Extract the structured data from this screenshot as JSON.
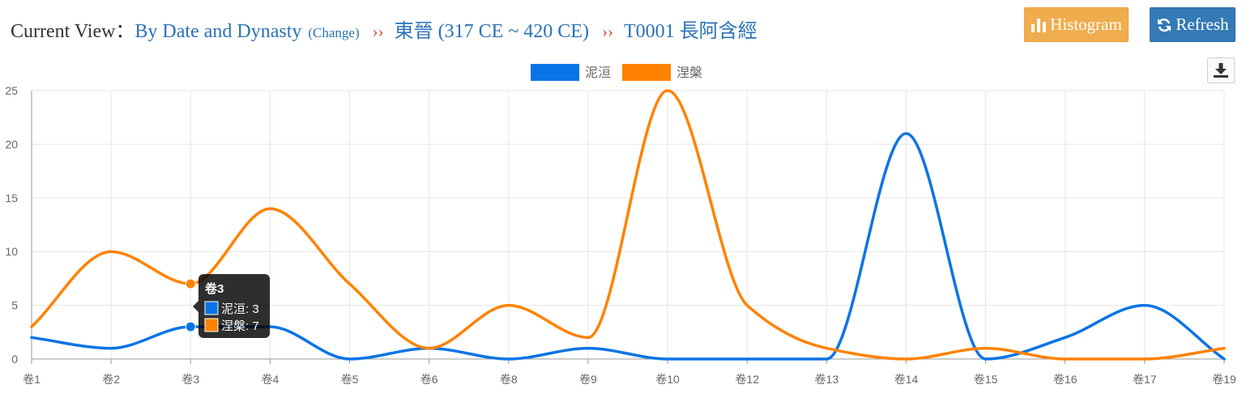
{
  "header": {
    "label": "Current View：",
    "view_mode": "By Date and Dynasty",
    "change_label": "(Change)",
    "separator": "››",
    "dynasty": "東晉 (317 CE ~ 420 CE)",
    "text": "T0001 長阿含經"
  },
  "buttons": {
    "histogram": "Histogram",
    "refresh": "Refresh"
  },
  "colors": {
    "series1": "#0a74e6",
    "series2": "#ff8200",
    "histogram_button": "#f0ad4e",
    "refresh_button": "#337ab7",
    "link": "#2a72b8",
    "separator": "#e04a3a"
  },
  "tooltip": {
    "title": "卷3",
    "lines": [
      "泥洹: 3",
      "涅槃: 7"
    ]
  },
  "chart_data": {
    "type": "line",
    "categories": [
      "卷1",
      "卷2",
      "卷3",
      "卷4",
      "卷5",
      "卷6",
      "卷8",
      "卷9",
      "卷10",
      "卷12",
      "卷13",
      "卷14",
      "卷15",
      "卷16",
      "卷17",
      "卷19"
    ],
    "series": [
      {
        "name": "泥洹",
        "values": [
          2,
          1,
          3,
          3,
          0,
          1,
          0,
          1,
          0,
          0,
          0,
          21,
          0,
          2,
          5,
          0
        ]
      },
      {
        "name": "涅槃",
        "values": [
          3,
          10,
          7,
          14,
          7,
          1,
          5,
          2,
          25,
          5,
          1,
          0,
          1,
          0,
          0,
          1
        ]
      }
    ],
    "ylim": [
      0,
      25
    ],
    "yticks": [
      0,
      5,
      10,
      15,
      20,
      25
    ],
    "grid": true,
    "legend": "top-center",
    "highlight_index": 2
  }
}
